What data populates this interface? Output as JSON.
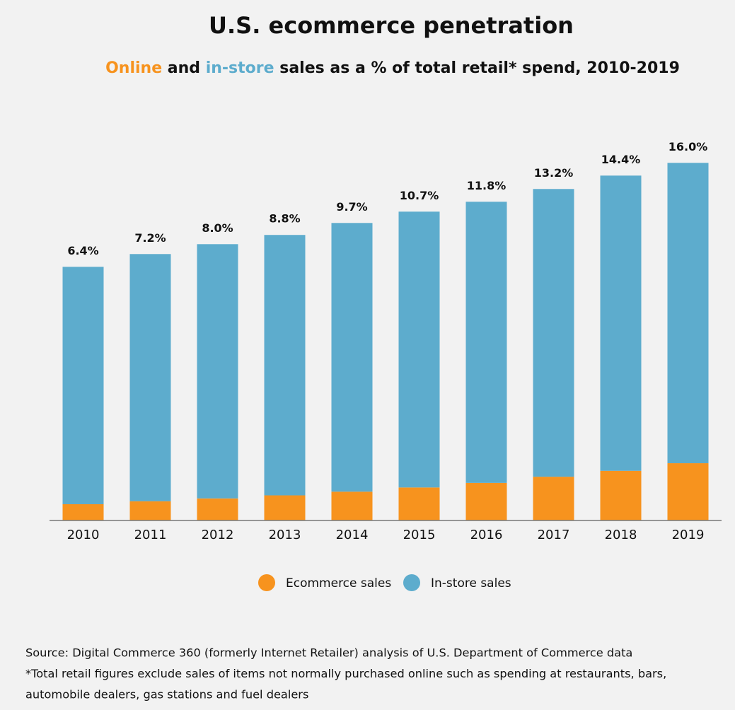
{
  "chart_data": {
    "type": "stacked_bar",
    "title": "U.S. ecommerce penetration",
    "subtitle": [
      "Online",
      " and ",
      "in-store",
      " sales as a % of total retail* spend, 2010-2019"
    ],
    "categories": [
      "2010",
      "2011",
      "2012",
      "2013",
      "2014",
      "2015",
      "2016",
      "2017",
      "2018",
      "2019"
    ],
    "series": [
      {
        "name": "Ecommerce sales",
        "color": "#f7931e",
        "values": [
          171,
          202,
          232,
          264,
          303,
          347,
          395,
          460,
          522,
          602
        ]
      },
      {
        "name": "In-store sales",
        "color": "#5daccd",
        "values": [
          2496,
          2599,
          2673,
          2738,
          2825,
          2900,
          2956,
          3025,
          3104,
          3158
        ]
      }
    ],
    "value_labels": [
      "6.4%",
      "7.2%",
      "8.0%",
      "8.8%",
      "9.7%",
      "10.7%",
      "11.8%",
      "13.2%",
      "14.4%",
      "16.0%"
    ],
    "ylim": [
      0,
      4000
    ],
    "notes": [
      "Source: Digital Commerce 360 (formerly Internet Retailer) analysis of U.S. Department of Commerce data",
      "*Total retail figures exclude sales of items not normally purchased online such as spending at restaurants, bars,",
      "automobile dealers, gas stations and fuel dealers"
    ]
  }
}
